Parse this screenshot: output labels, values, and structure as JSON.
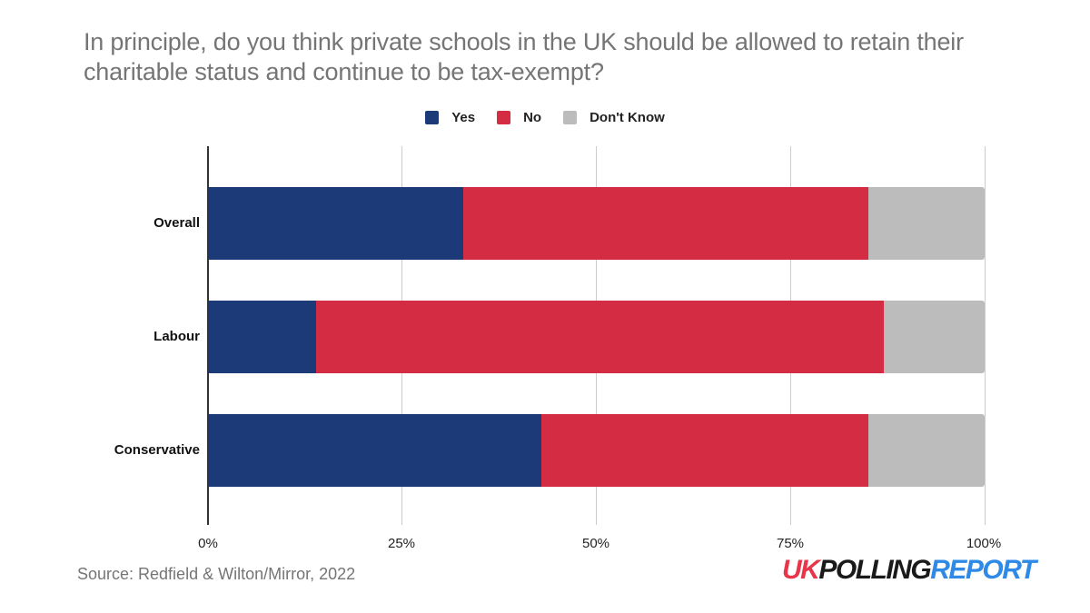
{
  "title": "In principle, do you think private schools in the UK should be allowed to retain their charitable status and continue to be tax-exempt?",
  "legend": [
    {
      "label": "Yes",
      "color": "#1c3a78"
    },
    {
      "label": "No",
      "color": "#d32c43"
    },
    {
      "label": "Don't Know",
      "color": "#bcbcbc"
    }
  ],
  "source": "Source: Redfield & Wilton/Mirror, 2022",
  "logo": {
    "part1": "UK",
    "part2": "POLLING",
    "part3": "REPORT",
    "color1": "#e8354a",
    "color2": "#1a1a1a",
    "color3": "#2e8ae6"
  },
  "ticks": [
    "0%",
    "25%",
    "50%",
    "75%",
    "100%"
  ],
  "chart_data": {
    "type": "bar",
    "orientation": "horizontal",
    "stacked": true,
    "title": "In principle, do you think private schools in the UK should be allowed to retain their charitable status and continue to be tax-exempt?",
    "categories": [
      "Overall",
      "Labour",
      "Conservative"
    ],
    "series": [
      {
        "name": "Yes",
        "color": "#1c3a78",
        "values": [
          33,
          14,
          43
        ]
      },
      {
        "name": "No",
        "color": "#d32c43",
        "values": [
          52,
          73,
          42
        ]
      },
      {
        "name": "Don't Know",
        "color": "#bcbcbc",
        "values": [
          15,
          13,
          15
        ]
      }
    ],
    "xlabel": "",
    "ylabel": "",
    "xlim": [
      0,
      100
    ],
    "x_ticks": [
      "0%",
      "25%",
      "50%",
      "75%",
      "100%"
    ],
    "grid": "vertical",
    "legend_position": "top",
    "source": "Source: Redfield & Wilton/Mirror, 2022"
  }
}
